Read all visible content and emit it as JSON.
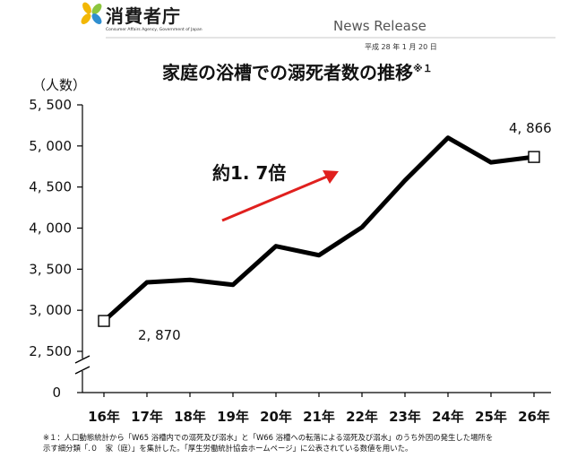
{
  "header": {
    "org_name": "消費者庁",
    "org_name_en": "Consumer Affairs Agency, Government of Japan",
    "release_label": "News Release",
    "date": "平成 28 年 1 月 20 日"
  },
  "colors": {
    "line": "#000000",
    "arrow": "#e0201e",
    "logo_leaf": "#f2b705",
    "logo_leaf2": "#8cc63f",
    "logo_leaf3": "#2f8fd0"
  },
  "chart_data": {
    "type": "line",
    "title": "家庭の浴槽での溺死者数の推移",
    "title_superscript": "※１",
    "ylabel": "（人数）",
    "xlabel": "",
    "categories": [
      "16年",
      "17年",
      "18年",
      "19年",
      "20年",
      "21年",
      "22年",
      "23年",
      "24年",
      "25年",
      "26年"
    ],
    "values": [
      2870,
      3340,
      3370,
      3310,
      3780,
      3670,
      4010,
      4580,
      5100,
      4800,
      4866
    ],
    "ylim": [
      2500,
      5500
    ],
    "y_ticks": [
      {
        "value": 5500,
        "label": "5, 500"
      },
      {
        "value": 5000,
        "label": "5, 000"
      },
      {
        "value": 4500,
        "label": "4, 500"
      },
      {
        "value": 4000,
        "label": "4, 000"
      },
      {
        "value": 3500,
        "label": "3, 500"
      },
      {
        "value": 3000,
        "label": "3, 000"
      },
      {
        "value": 2500,
        "label": "2, 500"
      }
    ],
    "y_zero_label": "0",
    "axis_break": true,
    "grid": false,
    "point_labels": [
      {
        "index": 0,
        "label": "2, 870"
      },
      {
        "index": 10,
        "label": "4, 866"
      }
    ],
    "marked_points": [
      0,
      10
    ],
    "annotation": "約1. 7倍"
  },
  "footnote": {
    "lines": [
      "※１：人口動態統計から「W65 浴槽内での溺死及び溺水」と「W66 浴槽への転落による溺死及び溺水」のうち外因の発生した場所を",
      "示す細分類「.０　家（庭）」を集計した。「厚生労働統計協会ホームページ」に公表されている数値を用いた。"
    ]
  }
}
